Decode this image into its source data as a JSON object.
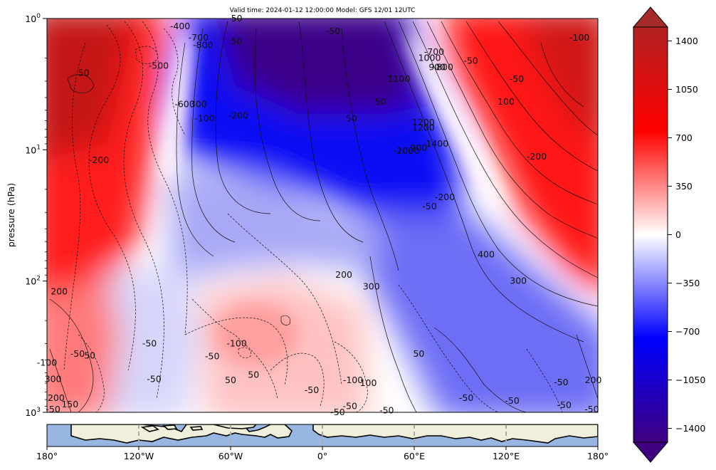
{
  "chart_data": [
    {
      "type": "heatmap",
      "title": "Valid time: 2024-01-12 12:00:00 Model: GFS 12/01 12UTC",
      "xlabel": "",
      "ylabel": "pressure (hPa)",
      "y_scale": "log",
      "y_inverted": true,
      "ylim": [
        1000,
        1
      ],
      "y_ticks": [
        "10^0",
        "10^1",
        "10^2",
        "10^3"
      ],
      "y_tick_values": [
        1,
        10,
        100,
        1000
      ],
      "xlim": [
        -180,
        180
      ],
      "colormap": "seismic_r (blue negative, red positive)",
      "colors": {
        "neg_max": "#3f0080",
        "neg": "#0000ff",
        "zero": "#ffffff",
        "pos": "#ff0000",
        "pos_max": "#a52a2a"
      },
      "colorbar": {
        "ticks": [
          "1400",
          "1050",
          "700",
          "350",
          "0",
          "−350",
          "−700",
          "−1050",
          "−1400"
        ],
        "tick_values": [
          1400,
          1050,
          700,
          350,
          0,
          -350,
          -700,
          -1050,
          -1400
        ],
        "extend": "both",
        "range": [
          -1500,
          1500
        ]
      },
      "field_pattern": [
        {
          "lon": -180,
          "p_low": 1,
          "p_high": 20,
          "value": 1200
        },
        {
          "lon": -110,
          "p_low": 1,
          "p_high": 50,
          "value": 700
        },
        {
          "lon": -60,
          "p_low": 1,
          "p_high": 30,
          "value": -1300
        },
        {
          "lon": 40,
          "p_low": 1,
          "p_high": 40,
          "value": -1400
        },
        {
          "lon": 120,
          "p_low": 1,
          "p_high": 50,
          "value": 900
        },
        {
          "lon": -30,
          "p_low": 200,
          "p_high": 1000,
          "value": 200
        },
        {
          "lon": 60,
          "p_low": 100,
          "p_high": 500,
          "value": -600
        }
      ],
      "contour_labels": [
        {
          "text": "-400",
          "lon": -93,
          "p": 1.15
        },
        {
          "text": "-700",
          "lon": -81,
          "p": 1.4
        },
        {
          "text": "-800",
          "lon": -78,
          "p": 1.6
        },
        {
          "text": "50",
          "lon": -56,
          "p": 1.0
        },
        {
          "text": "50",
          "lon": -56,
          "p": 1.5
        },
        {
          "text": "-50",
          "lon": 7,
          "p": 1.25
        },
        {
          "text": "-500",
          "lon": -107,
          "p": 2.3
        },
        {
          "text": "50",
          "lon": -156,
          "p": 2.6
        },
        {
          "text": "-600",
          "lon": -90,
          "p": 4.5
        },
        {
          "text": "300",
          "lon": -81,
          "p": 4.5
        },
        {
          "text": "-100",
          "lon": -77,
          "p": 5.8
        },
        {
          "text": "-200",
          "lon": -55,
          "p": 5.5
        },
        {
          "text": "-200",
          "lon": -146,
          "p": 12
        },
        {
          "text": "50",
          "lon": 19,
          "p": 5.8
        },
        {
          "text": "50",
          "lon": 38,
          "p": 4.3
        },
        {
          "text": "1100",
          "lon": 50,
          "p": 2.9
        },
        {
          "text": "-700",
          "lon": 73,
          "p": 1.8
        },
        {
          "text": "1000",
          "lon": 70,
          "p": 2.0
        },
        {
          "text": "900",
          "lon": 75,
          "p": 2.35
        },
        {
          "text": "800",
          "lon": 80,
          "p": 2.35
        },
        {
          "text": "-50",
          "lon": 97,
          "p": 2.1
        },
        {
          "text": "-100",
          "lon": 168,
          "p": 1.4
        },
        {
          "text": "-50",
          "lon": 127,
          "p": 2.9
        },
        {
          "text": "100",
          "lon": 120,
          "p": 4.3
        },
        {
          "text": "1200",
          "lon": 66,
          "p": 6.2
        },
        {
          "text": "1200",
          "lon": 66,
          "p": 6.8
        },
        {
          "text": "1400",
          "lon": 75,
          "p": 9.0
        },
        {
          "text": "900",
          "lon": 63,
          "p": 9.7
        },
        {
          "text": "-200",
          "lon": 53,
          "p": 10.2
        },
        {
          "text": "1000",
          "lon": 56,
          "p": 10.2
        },
        {
          "text": "-200",
          "lon": 140,
          "p": 11.3
        },
        {
          "text": "-200",
          "lon": 80,
          "p": 23
        },
        {
          "text": "-50",
          "lon": 70,
          "p": 27
        },
        {
          "text": "400",
          "lon": 107,
          "p": 63
        },
        {
          "text": "300",
          "lon": 128,
          "p": 100
        },
        {
          "text": "200",
          "lon": 14,
          "p": 90
        },
        {
          "text": "300",
          "lon": 32,
          "p": 110
        },
        {
          "text": "200",
          "lon": -172,
          "p": 120
        },
        {
          "text": "-100",
          "lon": -56,
          "p": 300
        },
        {
          "text": "-50",
          "lon": -72,
          "p": 375
        },
        {
          "text": "-50",
          "lon": -160,
          "p": 360
        },
        {
          "text": "50",
          "lon": -152,
          "p": 370
        },
        {
          "text": "-50",
          "lon": -113,
          "p": 300
        },
        {
          "text": "50",
          "lon": 63,
          "p": 360
        },
        {
          "text": "-100",
          "lon": -180,
          "p": 420
        },
        {
          "text": "100",
          "lon": 30,
          "p": 600
        },
        {
          "text": "-100",
          "lon": 20,
          "p": 570
        },
        {
          "text": "300",
          "lon": -176,
          "p": 560
        },
        {
          "text": "-50",
          "lon": -110,
          "p": 560
        },
        {
          "text": "50",
          "lon": -60,
          "p": 570
        },
        {
          "text": "50",
          "lon": -45,
          "p": 520
        },
        {
          "text": "-50",
          "lon": -7,
          "p": 680
        },
        {
          "text": "200",
          "lon": -174,
          "p": 780
        },
        {
          "text": "150",
          "lon": -165,
          "p": 870
        },
        {
          "text": "-50",
          "lon": 18,
          "p": 900
        },
        {
          "text": "-50",
          "lon": 42,
          "p": 970
        },
        {
          "text": "-50",
          "lon": 10,
          "p": 1000
        },
        {
          "text": "-50",
          "lon": 94,
          "p": 780
        },
        {
          "text": "-50",
          "lon": 124,
          "p": 820
        },
        {
          "text": "-50",
          "lon": 158,
          "p": 880
        },
        {
          "text": "-50",
          "lon": 156,
          "p": 590
        },
        {
          "text": "200",
          "lon": 177,
          "p": 570
        },
        {
          "text": "-50",
          "lon": 176,
          "p": 950
        },
        {
          "text": "-50",
          "lon": -176,
          "p": 950
        }
      ]
    },
    {
      "type": "map",
      "description": "longitude strip (map inset)",
      "x_ticks": [
        "180°",
        "120°W",
        "60°W",
        "0°",
        "60°E",
        "120°E",
        "180°"
      ],
      "x_tick_values": [
        -180,
        -120,
        -60,
        0,
        60,
        120,
        180
      ],
      "colors": {
        "ocean": "#97b6e1",
        "land": "#efefdb",
        "grid": "#aaaaaa"
      }
    }
  ]
}
